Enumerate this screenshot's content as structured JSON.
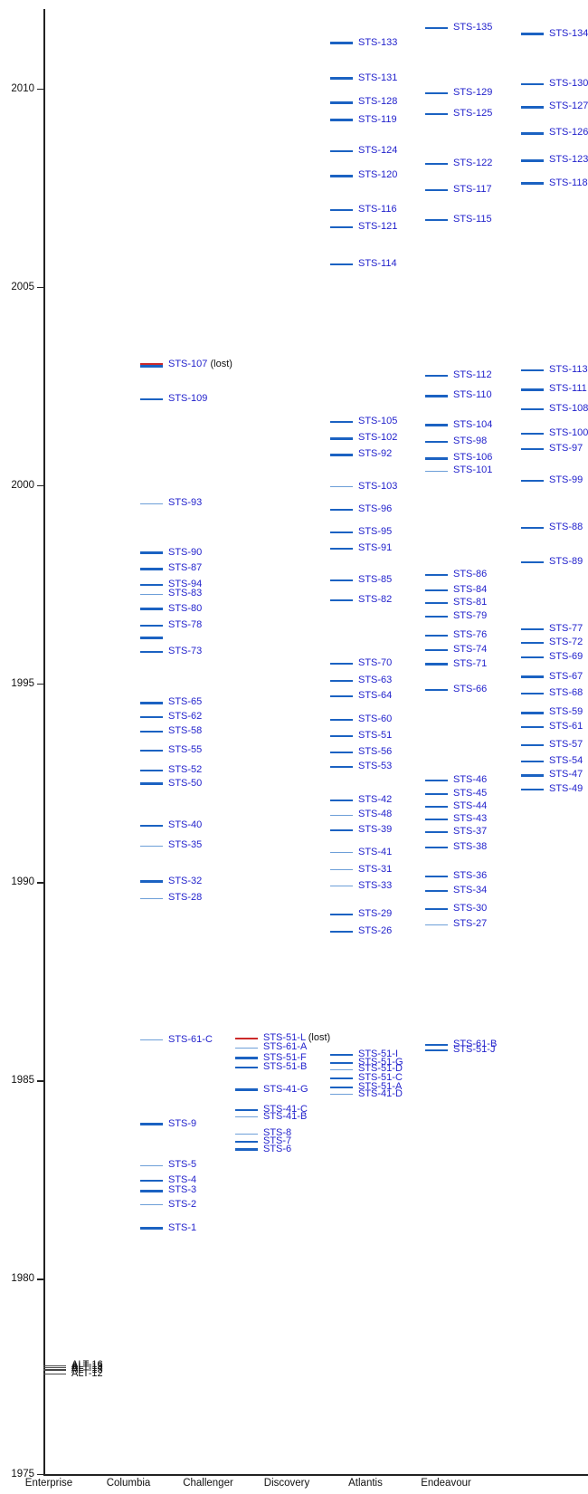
{
  "chart_data": {
    "type": "scatter",
    "title": "",
    "description_visible_text_only": true,
    "xlabel": "",
    "ylabel": "",
    "x_axis": {
      "categories": [
        "Enterprise",
        "Columbia",
        "Challenger",
        "Discovery",
        "Atlantis",
        "Endeavour"
      ]
    },
    "y_axis": {
      "ticks": [
        2010,
        2005,
        2000,
        1995,
        1990,
        1985,
        1980,
        1975
      ],
      "range": [
        1975,
        2012.2
      ],
      "grid": false
    },
    "legend": "none",
    "colors": {
      "line_blue": "#1b62c2",
      "line_light_blue": "#6d9fd8",
      "line_red": "#cc2a2a",
      "line_black": "#444444",
      "label_blue": "#2222cc",
      "label_black": "#111111",
      "axis": "#222222"
    },
    "series": [
      {
        "orbiter": "Enterprise",
        "missions": [
          {
            "label": "ALT-16",
            "year": 1977.82,
            "style": "black"
          },
          {
            "label": "ALT-15",
            "year": 1977.78,
            "style": "black"
          },
          {
            "label": "ALT-14",
            "year": 1977.73,
            "style": "black"
          },
          {
            "label": "ALT-13",
            "year": 1977.7,
            "style": "black"
          },
          {
            "label": "ALT-12",
            "year": 1977.61,
            "style": "black"
          }
        ]
      },
      {
        "orbiter": "Columbia",
        "missions": [
          {
            "label": "STS-107",
            "suffix": " (lost)",
            "year": 2003.04,
            "style": "redblue"
          },
          {
            "label": "STS-109",
            "year": 2002.17,
            "style": "normal"
          },
          {
            "label": "STS-93",
            "year": 1999.54,
            "style": "light"
          },
          {
            "label": "STS-90",
            "year": 1998.3,
            "style": "thick"
          },
          {
            "label": "STS-87",
            "year": 1997.9,
            "style": "thick"
          },
          {
            "label": "STS-94",
            "year": 1997.5,
            "style": "normal"
          },
          {
            "label": "STS-83",
            "year": 1997.26,
            "style": "light"
          },
          {
            "label": "STS-80",
            "year": 1996.89,
            "style": "thick"
          },
          {
            "label": "STS-78",
            "year": 1996.47,
            "style": "normal"
          },
          {
            "label": "",
            "year": 1996.16,
            "style": "thick"
          },
          {
            "label": "STS-73",
            "year": 1995.8,
            "style": "normal"
          },
          {
            "label": "STS-65",
            "year": 1994.52,
            "style": "thick"
          },
          {
            "label": "STS-62",
            "year": 1994.17,
            "style": "normal"
          },
          {
            "label": "STS-58",
            "year": 1993.79,
            "style": "normal"
          },
          {
            "label": "STS-55",
            "year": 1993.32,
            "style": "normal"
          },
          {
            "label": "STS-52",
            "year": 1992.82,
            "style": "normal"
          },
          {
            "label": "STS-50",
            "year": 1992.48,
            "style": "thick"
          },
          {
            "label": "STS-40",
            "year": 1991.42,
            "style": "normal"
          },
          {
            "label": "STS-35",
            "year": 1990.92,
            "style": "light"
          },
          {
            "label": "STS-32",
            "year": 1990.02,
            "style": "thick"
          },
          {
            "label": "STS-28",
            "year": 1989.6,
            "style": "light"
          },
          {
            "label": "STS-61-C",
            "year": 1986.03,
            "style": "light"
          },
          {
            "label": "STS-9",
            "year": 1983.91,
            "style": "thick"
          },
          {
            "label": "STS-5",
            "year": 1982.87,
            "style": "light"
          },
          {
            "label": "STS-4",
            "year": 1982.49,
            "style": "normal"
          },
          {
            "label": "STS-3",
            "year": 1982.23,
            "style": "thick"
          },
          {
            "label": "STS-2",
            "year": 1981.87,
            "style": "light"
          },
          {
            "label": "STS-1",
            "year": 1981.28,
            "style": "thick"
          }
        ]
      },
      {
        "orbiter": "Challenger",
        "missions": [
          {
            "label": "STS-51-L",
            "suffix": " (lost)",
            "year": 1986.07,
            "style": "red"
          },
          {
            "label": "STS-61-A",
            "year": 1985.83,
            "style": "light"
          },
          {
            "label": "STS-51-F",
            "year": 1985.57,
            "style": "thick"
          },
          {
            "label": "STS-51-B",
            "year": 1985.33,
            "style": "normal"
          },
          {
            "label": "STS-41-G",
            "year": 1984.77,
            "style": "thick"
          },
          {
            "label": "STS-41-C",
            "year": 1984.27,
            "style": "normal"
          },
          {
            "label": "STS-41-B",
            "year": 1984.09,
            "style": "light"
          },
          {
            "label": "STS-8",
            "year": 1983.66,
            "style": "light"
          },
          {
            "label": "STS-7",
            "year": 1983.46,
            "style": "normal"
          },
          {
            "label": "STS-6",
            "year": 1983.27,
            "style": "thick"
          }
        ]
      },
      {
        "orbiter": "Discovery",
        "missions": [
          {
            "label": "STS-133",
            "year": 2011.15,
            "style": "thick"
          },
          {
            "label": "STS-131",
            "year": 2010.26,
            "style": "thick"
          },
          {
            "label": "STS-128",
            "year": 2009.65,
            "style": "thick"
          },
          {
            "label": "STS-119",
            "year": 2009.21,
            "style": "thick"
          },
          {
            "label": "STS-124",
            "year": 2008.42,
            "style": "normal"
          },
          {
            "label": "STS-120",
            "year": 2007.8,
            "style": "thick"
          },
          {
            "label": "STS-116",
            "year": 2006.94,
            "style": "normal"
          },
          {
            "label": "STS-121",
            "year": 2006.51,
            "style": "normal"
          },
          {
            "label": "STS-114",
            "year": 2005.57,
            "style": "normal"
          },
          {
            "label": "STS-105",
            "year": 2001.61,
            "style": "normal"
          },
          {
            "label": "STS-102",
            "year": 2001.19,
            "style": "thick"
          },
          {
            "label": "STS-92",
            "year": 2000.78,
            "style": "thick"
          },
          {
            "label": "STS-103",
            "year": 1999.97,
            "style": "light"
          },
          {
            "label": "STS-96",
            "year": 1999.4,
            "style": "normal"
          },
          {
            "label": "STS-95",
            "year": 1998.82,
            "style": "normal"
          },
          {
            "label": "STS-91",
            "year": 1998.42,
            "style": "normal"
          },
          {
            "label": "STS-85",
            "year": 1997.6,
            "style": "normal"
          },
          {
            "label": "STS-82",
            "year": 1997.12,
            "style": "normal"
          },
          {
            "label": "STS-70",
            "year": 1995.52,
            "style": "normal"
          },
          {
            "label": "STS-63",
            "year": 1995.09,
            "style": "normal"
          },
          {
            "label": "STS-64",
            "year": 1994.69,
            "style": "normal"
          },
          {
            "label": "STS-60",
            "year": 1994.09,
            "style": "normal"
          },
          {
            "label": "STS-51",
            "year": 1993.69,
            "style": "normal"
          },
          {
            "label": "STS-56",
            "year": 1993.27,
            "style": "normal"
          },
          {
            "label": "STS-53",
            "year": 1992.92,
            "style": "normal"
          },
          {
            "label": "STS-42",
            "year": 1992.07,
            "style": "normal"
          },
          {
            "label": "STS-48",
            "year": 1991.7,
            "style": "light"
          },
          {
            "label": "STS-39",
            "year": 1991.32,
            "style": "normal"
          },
          {
            "label": "STS-41",
            "year": 1990.75,
            "style": "light"
          },
          {
            "label": "STS-31",
            "year": 1990.32,
            "style": "light"
          },
          {
            "label": "STS-33",
            "year": 1989.9,
            "style": "light"
          },
          {
            "label": "STS-29",
            "year": 1989.2,
            "style": "normal"
          },
          {
            "label": "STS-26",
            "year": 1988.75,
            "style": "normal"
          },
          {
            "label": "STS-51-I",
            "year": 1985.66,
            "style": "normal"
          },
          {
            "label": "STS-51-G",
            "year": 1985.46,
            "style": "normal"
          },
          {
            "label": "STS-51-D",
            "year": 1985.29,
            "style": "light"
          },
          {
            "label": "STS-51-C",
            "year": 1985.07,
            "style": "normal"
          },
          {
            "label": "STS-51-A",
            "year": 1984.84,
            "style": "normal"
          },
          {
            "label": "STS-41-D",
            "year": 1984.66,
            "style": "light"
          }
        ]
      },
      {
        "orbiter": "Atlantis",
        "missions": [
          {
            "label": "STS-135",
            "year": 2011.52,
            "style": "normal"
          },
          {
            "label": "STS-129",
            "year": 2009.88,
            "style": "normal"
          },
          {
            "label": "STS-125",
            "year": 2009.37,
            "style": "normal"
          },
          {
            "label": "STS-122",
            "year": 2008.1,
            "style": "normal"
          },
          {
            "label": "STS-117",
            "year": 2007.44,
            "style": "normal"
          },
          {
            "label": "STS-115",
            "year": 2006.69,
            "style": "normal"
          },
          {
            "label": "STS-112",
            "year": 2002.77,
            "style": "normal"
          },
          {
            "label": "STS-110",
            "year": 2002.26,
            "style": "thick"
          },
          {
            "label": "STS-104",
            "year": 2001.52,
            "style": "thick"
          },
          {
            "label": "STS-98",
            "year": 2001.11,
            "style": "normal"
          },
          {
            "label": "STS-106",
            "year": 2000.69,
            "style": "thick"
          },
          {
            "label": "STS-101",
            "year": 2000.37,
            "style": "light"
          },
          {
            "label": "STS-86",
            "year": 1997.74,
            "style": "normal"
          },
          {
            "label": "STS-84",
            "year": 1997.37,
            "style": "normal"
          },
          {
            "label": "STS-81",
            "year": 1997.04,
            "style": "normal"
          },
          {
            "label": "STS-79",
            "year": 1996.71,
            "style": "normal"
          },
          {
            "label": "STS-76",
            "year": 1996.22,
            "style": "normal"
          },
          {
            "label": "STS-74",
            "year": 1995.86,
            "style": "normal"
          },
          {
            "label": "STS-71",
            "year": 1995.49,
            "style": "thick"
          },
          {
            "label": "STS-66",
            "year": 1994.84,
            "style": "normal"
          },
          {
            "label": "STS-46",
            "year": 1992.58,
            "style": "normal"
          },
          {
            "label": "STS-45",
            "year": 1992.23,
            "style": "normal"
          },
          {
            "label": "STS-44",
            "year": 1991.91,
            "style": "normal"
          },
          {
            "label": "STS-43",
            "year": 1991.59,
            "style": "normal"
          },
          {
            "label": "STS-37",
            "year": 1991.26,
            "style": "normal"
          },
          {
            "label": "STS-38",
            "year": 1990.87,
            "style": "normal"
          },
          {
            "label": "STS-36",
            "year": 1990.16,
            "style": "normal"
          },
          {
            "label": "STS-34",
            "year": 1989.79,
            "style": "normal"
          },
          {
            "label": "STS-30",
            "year": 1989.34,
            "style": "normal"
          },
          {
            "label": "STS-27",
            "year": 1988.93,
            "style": "light"
          },
          {
            "label": "STS-61-B",
            "year": 1985.91,
            "style": "normal"
          },
          {
            "label": "STS-51-J",
            "year": 1985.76,
            "style": "normal"
          }
        ]
      },
      {
        "orbiter": "Endeavour",
        "missions": [
          {
            "label": "STS-134",
            "year": 2011.37,
            "style": "thick"
          },
          {
            "label": "STS-130",
            "year": 2010.11,
            "style": "normal"
          },
          {
            "label": "STS-127",
            "year": 2009.54,
            "style": "thick"
          },
          {
            "label": "STS-126",
            "year": 2008.88,
            "style": "thick"
          },
          {
            "label": "STS-123",
            "year": 2008.19,
            "style": "thick"
          },
          {
            "label": "STS-118",
            "year": 2007.61,
            "style": "thick"
          },
          {
            "label": "STS-113",
            "year": 2002.9,
            "style": "normal"
          },
          {
            "label": "STS-111",
            "year": 2002.42,
            "style": "thick"
          },
          {
            "label": "STS-108",
            "year": 2001.93,
            "style": "normal"
          },
          {
            "label": "STS-100",
            "year": 2001.3,
            "style": "normal"
          },
          {
            "label": "STS-97",
            "year": 2000.92,
            "style": "normal"
          },
          {
            "label": "STS-99",
            "year": 2000.12,
            "style": "normal"
          },
          {
            "label": "STS-88",
            "year": 1998.93,
            "style": "normal"
          },
          {
            "label": "STS-89",
            "year": 1998.06,
            "style": "normal"
          },
          {
            "label": "STS-77",
            "year": 1996.38,
            "style": "normal"
          },
          {
            "label": "STS-72",
            "year": 1996.03,
            "style": "normal"
          },
          {
            "label": "STS-69",
            "year": 1995.68,
            "style": "normal"
          },
          {
            "label": "STS-67",
            "year": 1995.17,
            "style": "thick"
          },
          {
            "label": "STS-68",
            "year": 1994.76,
            "style": "normal"
          },
          {
            "label": "STS-59",
            "year": 1994.27,
            "style": "thick"
          },
          {
            "label": "STS-61",
            "year": 1993.92,
            "style": "normal"
          },
          {
            "label": "STS-57",
            "year": 1993.47,
            "style": "normal"
          },
          {
            "label": "STS-54",
            "year": 1993.04,
            "style": "normal"
          },
          {
            "label": "STS-47",
            "year": 1992.7,
            "style": "thick"
          },
          {
            "label": "STS-49",
            "year": 1992.35,
            "style": "normal"
          }
        ]
      }
    ]
  }
}
